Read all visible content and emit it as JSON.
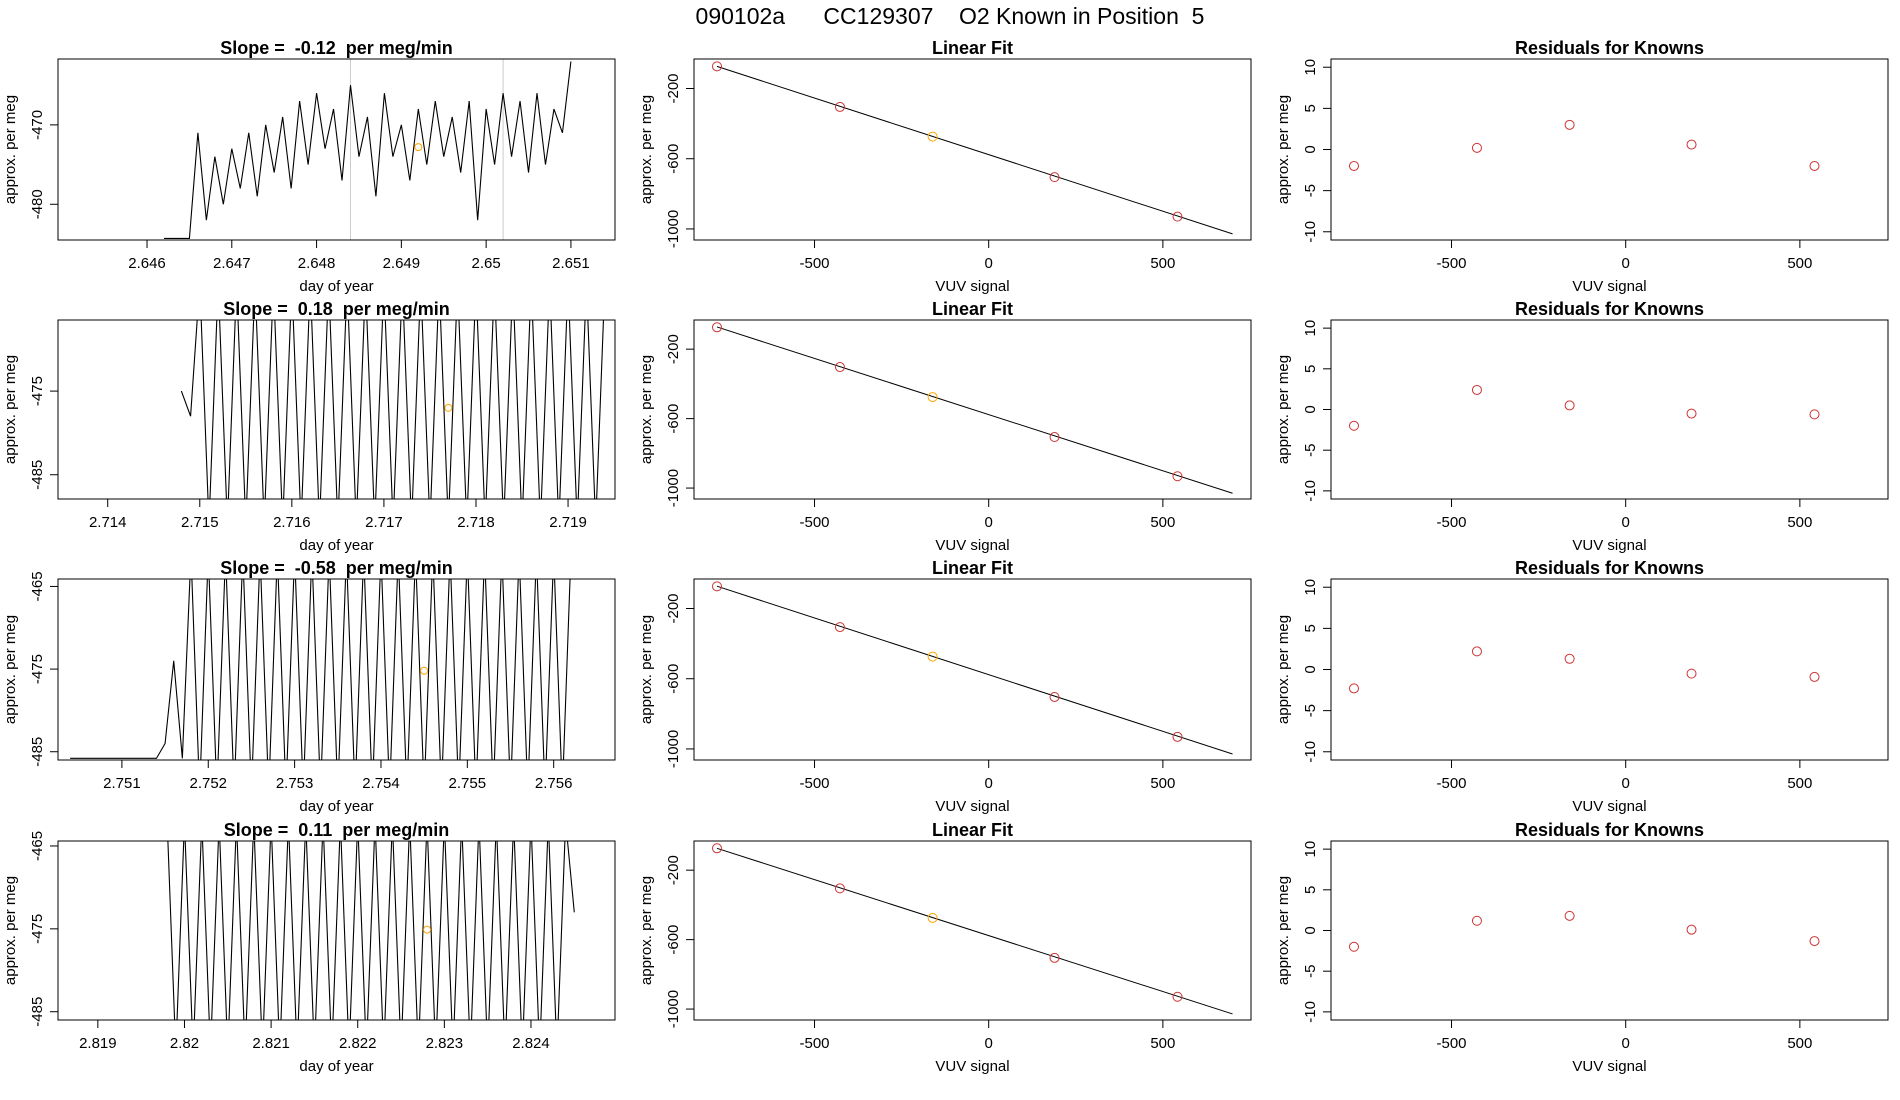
{
  "title": "090102a      CC129307    O2 Known in Position  5",
  "chart_data": [
    {
      "type": "line",
      "title": "Slope =  -0.12  per meg/min",
      "xlabel": "day of year",
      "ylabel": "approx. per meg",
      "color": "#000000",
      "x": [
        2.6462,
        2.6465,
        2.6466,
        2.6467,
        2.6468,
        2.6469,
        2.647,
        2.6471,
        2.6472,
        2.6473,
        2.6474,
        2.6475,
        2.6476,
        2.6477,
        2.6478,
        2.6479,
        2.648,
        2.6481,
        2.6482,
        2.6483,
        2.6484,
        2.6485,
        2.6486,
        2.6487,
        2.6488,
        2.6489,
        2.649,
        2.6491,
        2.6492,
        2.6493,
        2.6494,
        2.6495,
        2.6496,
        2.6497,
        2.6498,
        2.6499,
        2.65,
        2.6501,
        2.6502,
        2.6503,
        2.6504,
        2.6505,
        2.6506,
        2.6507,
        2.6508,
        2.6509,
        2.651
      ],
      "values": [
        -484.3,
        -484.3,
        -471,
        -482,
        -474,
        -480,
        -473,
        -478,
        -471,
        -479,
        -470,
        -476,
        -469,
        -478,
        -467,
        -475,
        -466,
        -473,
        -468,
        -477,
        -465,
        -474,
        -469,
        -479,
        -466,
        -474,
        -470,
        -477,
        -468,
        -475,
        -467,
        -474,
        -469,
        -476,
        -467,
        -482,
        -468,
        -475,
        -466,
        -474,
        -467,
        -476,
        -466,
        -475,
        -468,
        -471,
        -462
      ],
      "highlight": {
        "x": 2.6492,
        "y": -472.8,
        "color": "#ffa500"
      },
      "vlines": [
        2.6484,
        2.6502
      ],
      "vline_color": "#cccccc",
      "xlim": [
        2.64495,
        2.65152
      ],
      "xticks": [
        2.646,
        2.647,
        2.648,
        2.649,
        2.65,
        2.651
      ],
      "ylim": [
        -484.5,
        -461.7
      ],
      "yticks": [
        -480,
        -470
      ]
    },
    {
      "type": "scatter",
      "title": "Linear Fit",
      "xlabel": "VUV signal",
      "ylabel": "approx. per meg",
      "x": [
        -780,
        -427,
        -161,
        189,
        542
      ],
      "values": [
        -74,
        -305,
        -474,
        -705,
        -930
      ],
      "colors": [
        "#cd3333",
        "#cd3333",
        "#ffa500",
        "#cd3333",
        "#cd3333"
      ],
      "fit_line": {
        "x": [
          -780,
          700
        ],
        "y": [
          -74,
          -1028
        ]
      },
      "line_color": "#000000",
      "xlim": [
        -846,
        753
      ],
      "xticks": [
        -500,
        0,
        500
      ],
      "ylim": [
        -1063,
        -32
      ],
      "yticks": [
        -200,
        -600,
        -1000
      ]
    },
    {
      "type": "scatter",
      "title": "Residuals for Knowns",
      "xlabel": "VUV signal",
      "ylabel": "approx. per meg",
      "x": [
        -780,
        -427,
        -161,
        189,
        542
      ],
      "values": [
        -2,
        0.2,
        3,
        0.6,
        -2
      ],
      "colors": [
        "#cd3333",
        "#cd3333",
        "#cd3333",
        "#cd3333",
        "#cd3333"
      ],
      "xlim": [
        -846,
        753
      ],
      "xticks": [
        -500,
        0,
        500
      ],
      "ylim": [
        -11,
        11
      ],
      "yticks": [
        -10,
        -5,
        0,
        5,
        10
      ]
    },
    {
      "type": "line",
      "title": "Slope =  0.18  per meg/min",
      "xlabel": "day of year",
      "ylabel": "approx. per meg",
      "color": "#000000",
      "x": [
        2.7148,
        2.7149,
        2.715,
        2.7151,
        2.7152,
        2.7153,
        2.7154,
        2.7155,
        2.7156,
        2.7157,
        2.7158,
        2.7159,
        2.716,
        2.7161,
        2.7162,
        2.7163,
        2.7164,
        2.7165,
        2.7166,
        2.7167,
        2.7168,
        2.7169,
        2.717,
        2.7171,
        2.7172,
        2.7173,
        2.7174,
        2.7175,
        2.7176,
        2.7177,
        2.7178,
        2.7179,
        2.718,
        2.7181,
        2.7182,
        2.7183,
        2.7184,
        2.7185,
        2.7186,
        2.7187,
        2.7188,
        2.7189,
        2.719,
        2.7191,
        2.7192,
        2.7193,
        2.7194
      ],
      "values": [
        -475,
        -478,
        -462,
        -491,
        -462,
        -491,
        -462,
        -491,
        -462,
        -491,
        -462,
        -491,
        -462,
        -491,
        -462,
        -491,
        -462,
        -491,
        -462,
        -491,
        -462,
        -491,
        -462,
        -491,
        -462,
        -491,
        -462,
        -491,
        -462,
        -491,
        -462,
        -491,
        -462,
        -491,
        -462,
        -491,
        -462,
        -491,
        -462,
        -491,
        -462,
        -491,
        -462,
        -491,
        -462,
        -491,
        -462
      ],
      "highlight": {
        "x": 2.7177,
        "y": -477,
        "color": "#ffa500"
      },
      "xlim": [
        2.71346,
        2.71951
      ],
      "xticks": [
        2.714,
        2.715,
        2.716,
        2.717,
        2.718,
        2.719
      ],
      "ylim": [
        -487.9,
        -466.5
      ],
      "yticks": [
        -485,
        -475
      ]
    },
    {
      "type": "scatter",
      "title": "Linear Fit",
      "xlabel": "VUV signal",
      "ylabel": "approx. per meg",
      "x": [
        -780,
        -427,
        -161,
        189,
        542
      ],
      "values": [
        -74,
        -303,
        -476,
        -706,
        -932
      ],
      "colors": [
        "#cd3333",
        "#cd3333",
        "#ffa500",
        "#cd3333",
        "#cd3333"
      ],
      "fit_line": {
        "x": [
          -780,
          700
        ],
        "y": [
          -72,
          -1030
        ]
      },
      "line_color": "#000000",
      "xlim": [
        -846,
        753
      ],
      "xticks": [
        -500,
        0,
        500
      ],
      "ylim": [
        -1063,
        -32
      ],
      "yticks": [
        -200,
        -600,
        -1000
      ]
    },
    {
      "type": "scatter",
      "title": "Residuals for Knowns",
      "xlabel": "VUV signal",
      "ylabel": "approx. per meg",
      "x": [
        -780,
        -427,
        -161,
        189,
        542
      ],
      "values": [
        -2,
        2.4,
        0.5,
        -0.5,
        -0.6
      ],
      "colors": [
        "#cd3333",
        "#cd3333",
        "#cd3333",
        "#cd3333",
        "#cd3333"
      ],
      "xlim": [
        -846,
        753
      ],
      "xticks": [
        -500,
        0,
        500
      ],
      "ylim": [
        -11,
        11
      ],
      "yticks": [
        -10,
        -5,
        0,
        5,
        10
      ]
    },
    {
      "type": "line",
      "title": "Slope =  -0.58  per meg/min",
      "xlabel": "day of year",
      "ylabel": "approx. per meg",
      "color": "#000000",
      "x": [
        2.7504,
        2.7514,
        2.7515,
        2.7516,
        2.7517,
        2.7518,
        2.7519,
        2.752,
        2.7521,
        2.7522,
        2.7523,
        2.7524,
        2.7525,
        2.7526,
        2.7527,
        2.7528,
        2.7529,
        2.753,
        2.7531,
        2.7532,
        2.7533,
        2.7534,
        2.7535,
        2.7536,
        2.7537,
        2.7538,
        2.7539,
        2.754,
        2.7541,
        2.7542,
        2.7543,
        2.7544,
        2.7545,
        2.7546,
        2.7547,
        2.7548,
        2.7549,
        2.755,
        2.7551,
        2.7552,
        2.7553,
        2.7554,
        2.7555,
        2.7556,
        2.7557,
        2.7558,
        2.7559,
        2.756,
        2.7561,
        2.7562
      ],
      "values": [
        -485.8,
        -485.8,
        -484,
        -474,
        -485.8,
        -461,
        -490,
        -461,
        -490,
        -461,
        -490,
        -461,
        -490,
        -461,
        -490,
        -461,
        -490,
        -461,
        -490,
        -461,
        -490,
        -461,
        -490,
        -461,
        -490,
        -461,
        -490,
        -461,
        -490,
        -461,
        -490,
        -461,
        -490,
        -461,
        -490,
        -461,
        -490,
        -461,
        -490,
        -461,
        -490,
        -461,
        -490,
        -461,
        -490,
        -461,
        -490,
        -461,
        -490,
        -461
      ],
      "highlight": {
        "x": 2.7545,
        "y": -475.2,
        "color": "#ffa500"
      },
      "xlim": [
        2.75026,
        2.75671
      ],
      "xticks": [
        2.751,
        2.752,
        2.753,
        2.754,
        2.755,
        2.756
      ],
      "ylim": [
        -486,
        -464.1
      ],
      "yticks": [
        -485,
        -475,
        -465
      ]
    },
    {
      "type": "scatter",
      "title": "Linear Fit",
      "xlabel": "VUV signal",
      "ylabel": "approx. per meg",
      "x": [
        -780,
        -427,
        -161,
        189,
        542
      ],
      "values": [
        -74,
        -306,
        -474,
        -704,
        -931
      ],
      "colors": [
        "#cd3333",
        "#cd3333",
        "#ffa500",
        "#cd3333",
        "#cd3333"
      ],
      "fit_line": {
        "x": [
          -780,
          700
        ],
        "y": [
          -73,
          -1029
        ]
      },
      "line_color": "#000000",
      "xlim": [
        -846,
        753
      ],
      "xticks": [
        -500,
        0,
        500
      ],
      "ylim": [
        -1063,
        -32
      ],
      "yticks": [
        -200,
        -600,
        -1000
      ]
    },
    {
      "type": "scatter",
      "title": "Residuals for Knowns",
      "xlabel": "VUV signal",
      "ylabel": "approx. per meg",
      "x": [
        -780,
        -427,
        -161,
        189,
        542
      ],
      "values": [
        -2.3,
        2.2,
        1.3,
        -0.5,
        -0.9
      ],
      "colors": [
        "#cd3333",
        "#cd3333",
        "#cd3333",
        "#cd3333",
        "#cd3333"
      ],
      "xlim": [
        -846,
        753
      ],
      "xticks": [
        -500,
        0,
        500
      ],
      "ylim": [
        -11,
        11
      ],
      "yticks": [
        -10,
        -5,
        0,
        5,
        10
      ]
    },
    {
      "type": "line",
      "title": "Slope =  0.11  per meg/min",
      "xlabel": "day of year",
      "ylabel": "approx. per meg",
      "color": "#000000",
      "x": [
        2.8198,
        2.8199,
        2.82,
        2.8201,
        2.8202,
        2.8203,
        2.8204,
        2.8205,
        2.8206,
        2.8207,
        2.8208,
        2.8209,
        2.821,
        2.8211,
        2.8212,
        2.8213,
        2.8214,
        2.8215,
        2.8216,
        2.8217,
        2.8218,
        2.8219,
        2.822,
        2.8221,
        2.8222,
        2.8223,
        2.8224,
        2.8225,
        2.8226,
        2.8227,
        2.8228,
        2.8229,
        2.823,
        2.8231,
        2.8232,
        2.8233,
        2.8234,
        2.8235,
        2.8236,
        2.8237,
        2.8238,
        2.8239,
        2.824,
        2.8241,
        2.8242,
        2.8243,
        2.8244,
        2.8245
      ],
      "values": [
        -462,
        -490,
        -462,
        -490,
        -462,
        -490,
        -462,
        -490,
        -462,
        -490,
        -462,
        -490,
        -462,
        -490,
        -462,
        -490,
        -462,
        -490,
        -462,
        -490,
        -462,
        -490,
        -462,
        -490,
        -462,
        -490,
        -462,
        -490,
        -462,
        -490,
        -462,
        -490,
        -462,
        -490,
        -462,
        -490,
        -462,
        -490,
        -462,
        -490,
        -462,
        -490,
        -462,
        -490,
        -462,
        -490,
        -462,
        -473
      ],
      "highlight": {
        "x": 2.8228,
        "y": -475.1,
        "color": "#ffa500"
      },
      "xlim": [
        2.81854,
        2.82497
      ],
      "xticks": [
        2.819,
        2.82,
        2.821,
        2.822,
        2.823,
        2.824
      ],
      "ylim": [
        -486,
        -464.4
      ],
      "yticks": [
        -485,
        -475,
        -465
      ]
    },
    {
      "type": "scatter",
      "title": "Linear Fit",
      "xlabel": "VUV signal",
      "ylabel": "approx. per meg",
      "x": [
        -780,
        -427,
        -161,
        189,
        542
      ],
      "values": [
        -74,
        -305,
        -475,
        -705,
        -929
      ],
      "colors": [
        "#cd3333",
        "#cd3333",
        "#ffa500",
        "#cd3333",
        "#cd3333"
      ],
      "fit_line": {
        "x": [
          -780,
          700
        ],
        "y": [
          -74,
          -1028
        ]
      },
      "line_color": "#000000",
      "xlim": [
        -846,
        753
      ],
      "xticks": [
        -500,
        0,
        500
      ],
      "ylim": [
        -1063,
        -32
      ],
      "yticks": [
        -200,
        -600,
        -1000
      ]
    },
    {
      "type": "scatter",
      "title": "Residuals for Knowns",
      "xlabel": "VUV signal",
      "ylabel": "approx. per meg",
      "x": [
        -780,
        -427,
        -161,
        189,
        542
      ],
      "values": [
        -2,
        1.2,
        1.8,
        0.1,
        -1.3
      ],
      "colors": [
        "#cd3333",
        "#cd3333",
        "#cd3333",
        "#cd3333",
        "#cd3333"
      ],
      "xlim": [
        -846,
        753
      ],
      "xticks": [
        -500,
        0,
        500
      ],
      "ylim": [
        -11,
        11
      ],
      "yticks": [
        -10,
        -5,
        0,
        5,
        10
      ]
    }
  ]
}
